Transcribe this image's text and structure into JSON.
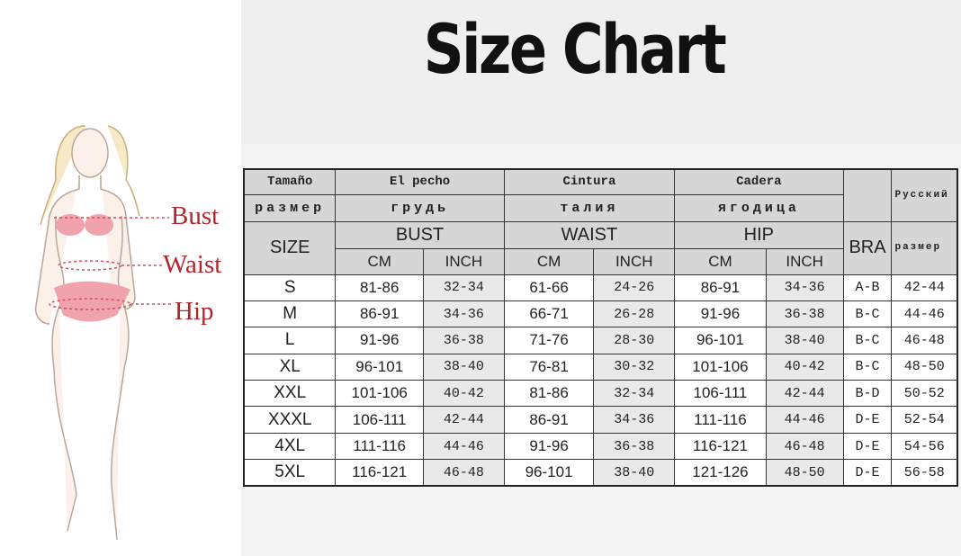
{
  "title": "Size Chart",
  "figure": {
    "labels": [
      "Bust",
      "Waist",
      "Hip"
    ],
    "label_color": "#b0262b"
  },
  "table": {
    "header_es": {
      "size": "Tamaño",
      "bust": "El pecho",
      "waist": "Cintura",
      "hip": "Cadera",
      "ru": "Русский"
    },
    "header_ru": {
      "size": "размер",
      "bust": "грудь",
      "waist": "талия",
      "hip": "ягодица",
      "ru": "размер"
    },
    "header_en": {
      "size": "SIZE",
      "bust": "BUST",
      "waist": "WAIST",
      "hip": "HIP",
      "bra": "BRA"
    },
    "units": [
      "CM",
      "INCH",
      "CM",
      "INCH",
      "CM",
      "INCH"
    ],
    "rows": [
      [
        "S",
        "81-86",
        "32-34",
        "61-66",
        "24-26",
        "86-91",
        "34-36",
        "A-B",
        "42-44"
      ],
      [
        "M",
        "86-91",
        "34-36",
        "66-71",
        "26-28",
        "91-96",
        "36-38",
        "B-C",
        "44-46"
      ],
      [
        "L",
        "91-96",
        "36-38",
        "71-76",
        "28-30",
        "96-101",
        "38-40",
        "B-C",
        "46-48"
      ],
      [
        "XL",
        "96-101",
        "38-40",
        "76-81",
        "30-32",
        "101-106",
        "40-42",
        "B-C",
        "48-50"
      ],
      [
        "XXL",
        "101-106",
        "40-42",
        "81-86",
        "32-34",
        "106-111",
        "42-44",
        "B-D",
        "50-52"
      ],
      [
        "XXXL",
        "106-111",
        "42-44",
        "86-91",
        "34-36",
        "111-116",
        "44-46",
        "D-E",
        "52-54"
      ],
      [
        "4XL",
        "111-116",
        "44-46",
        "91-96",
        "36-38",
        "116-121",
        "46-48",
        "D-E",
        "54-56"
      ],
      [
        "5XL",
        "116-121",
        "46-48",
        "96-101",
        "38-40",
        "121-126",
        "48-50",
        "D-E",
        "56-58"
      ]
    ]
  }
}
